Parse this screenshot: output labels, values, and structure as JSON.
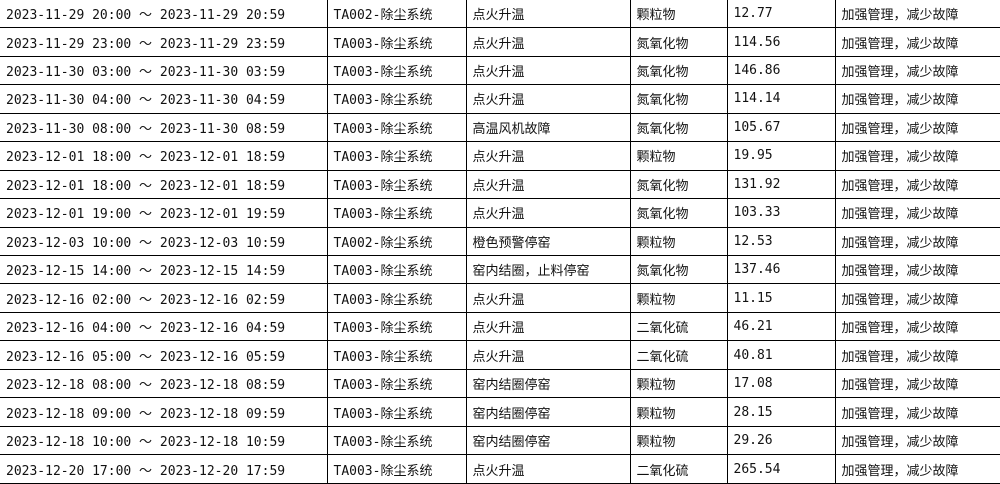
{
  "table": {
    "rows": [
      [
        "2023-11-29 20:00 ～ 2023-11-29 20:59",
        "TA002-除尘系统",
        "点火升温",
        "颗粒物",
        "12.77",
        "加强管理，减少故障"
      ],
      [
        "2023-11-29 23:00 ～ 2023-11-29 23:59",
        "TA003-除尘系统",
        "点火升温",
        "氮氧化物",
        "114.56",
        "加强管理，减少故障"
      ],
      [
        "2023-11-30 03:00 ～ 2023-11-30 03:59",
        "TA003-除尘系统",
        "点火升温",
        "氮氧化物",
        "146.86",
        "加强管理，减少故障"
      ],
      [
        "2023-11-30 04:00 ～ 2023-11-30 04:59",
        "TA003-除尘系统",
        "点火升温",
        "氮氧化物",
        "114.14",
        "加强管理，减少故障"
      ],
      [
        "2023-11-30 08:00 ～ 2023-11-30 08:59",
        "TA003-除尘系统",
        "高温风机故障",
        "氮氧化物",
        "105.67",
        "加强管理，减少故障"
      ],
      [
        "2023-12-01 18:00 ～ 2023-12-01 18:59",
        "TA003-除尘系统",
        "点火升温",
        "颗粒物",
        "19.95",
        "加强管理，减少故障"
      ],
      [
        "2023-12-01 18:00 ～ 2023-12-01 18:59",
        "TA003-除尘系统",
        "点火升温",
        "氮氧化物",
        "131.92",
        "加强管理，减少故障"
      ],
      [
        "2023-12-01 19:00 ～ 2023-12-01 19:59",
        "TA003-除尘系统",
        "点火升温",
        "氮氧化物",
        "103.33",
        "加强管理，减少故障"
      ],
      [
        "2023-12-03 10:00 ～ 2023-12-03 10:59",
        "TA002-除尘系统",
        "橙色预警停窑",
        "颗粒物",
        "12.53",
        "加强管理，减少故障"
      ],
      [
        "2023-12-15 14:00 ～ 2023-12-15 14:59",
        "TA003-除尘系统",
        "窑内结圈，止料停窑",
        "氮氧化物",
        "137.46",
        "加强管理，减少故障"
      ],
      [
        "2023-12-16 02:00 ～ 2023-12-16 02:59",
        "TA003-除尘系统",
        "点火升温",
        "颗粒物",
        "11.15",
        "加强管理，减少故障"
      ],
      [
        "2023-12-16 04:00 ～ 2023-12-16 04:59",
        "TA003-除尘系统",
        "点火升温",
        "二氧化硫",
        "46.21",
        "加强管理，减少故障"
      ],
      [
        "2023-12-16 05:00 ～ 2023-12-16 05:59",
        "TA003-除尘系统",
        "点火升温",
        "二氧化硫",
        "40.81",
        "加强管理，减少故障"
      ],
      [
        "2023-12-18 08:00 ～ 2023-12-18 08:59",
        "TA003-除尘系统",
        "窑内结圈停窑",
        "颗粒物",
        "17.08",
        "加强管理，减少故障"
      ],
      [
        "2023-12-18 09:00 ～ 2023-12-18 09:59",
        "TA003-除尘系统",
        "窑内结圈停窑",
        "颗粒物",
        "28.15",
        "加强管理，减少故障"
      ],
      [
        "2023-12-18 10:00 ～ 2023-12-18 10:59",
        "TA003-除尘系统",
        "窑内结圈停窑",
        "颗粒物",
        "29.26",
        "加强管理，减少故障"
      ],
      [
        "2023-12-20 17:00 ～ 2023-12-20 17:59",
        "TA003-除尘系统",
        "点火升温",
        "二氧化硫",
        "265.54",
        "加强管理，减少故障"
      ]
    ]
  }
}
